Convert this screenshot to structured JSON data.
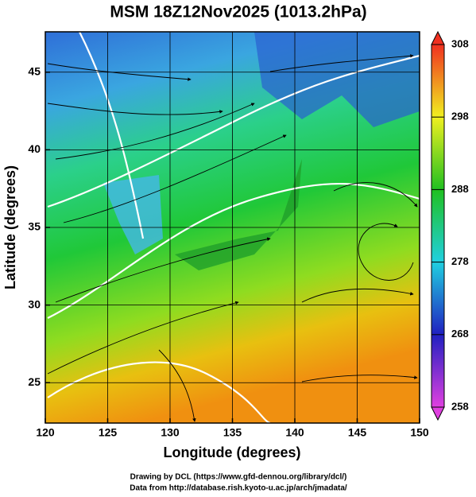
{
  "chart_data": {
    "type": "map",
    "title": "MSM 18Z12Nov2025 (1013.2hPa)",
    "xlabel": "Longitude (degrees)",
    "ylabel": "Latitude  (degrees)",
    "xlim": [
      120,
      150
    ],
    "xticks": [
      120,
      125,
      130,
      135,
      140,
      145,
      150
    ],
    "ylim": [
      22.4,
      47.6
    ],
    "yticks": [
      25,
      30,
      35,
      40,
      45
    ],
    "grid": true,
    "colorbar": {
      "lim": [
        258,
        308
      ],
      "ticks": [
        258,
        268,
        278,
        288,
        298,
        308
      ]
    },
    "footer": [
      "Drawing by DCL (https://www.gfd-dennou.org/library/dcl/)",
      "Data from http://database.rish.kyoto-u.ac.jp/arch/jmadata/"
    ]
  }
}
